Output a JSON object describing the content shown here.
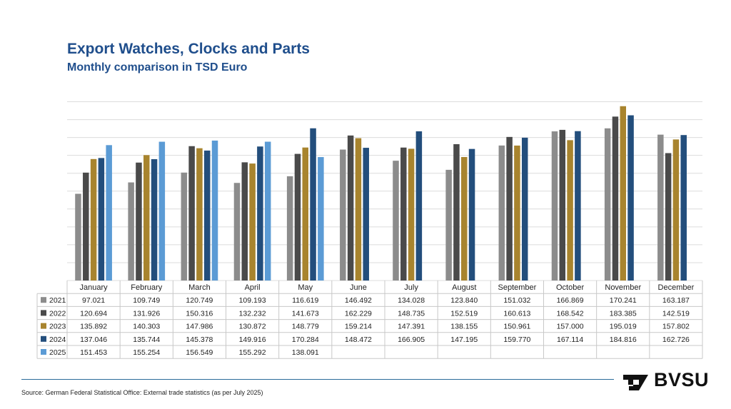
{
  "header": {
    "title": "Export Watches, Clocks and Parts",
    "subtitle": "Monthly comparison in TSD Euro"
  },
  "footer": {
    "source": "Source: German Federal Statistical Office: External trade statistics (as per July 2025)",
    "logo_text": "BVSU"
  },
  "chart_data": {
    "type": "bar",
    "title": "Export Watches, Clocks and Parts",
    "subtitle": "Monthly comparison in TSD Euro",
    "categories": [
      "January",
      "February",
      "March",
      "April",
      "May",
      "June",
      "July",
      "August",
      "September",
      "October",
      "November",
      "December"
    ],
    "ylim": [
      0,
      210
    ],
    "grid": true,
    "legend": "data-table",
    "series": [
      {
        "name": "2021",
        "color": "#8c8c8c",
        "values": [
          97.021,
          109.749,
          120.749,
          109.193,
          116.619,
          146.492,
          134.028,
          123.84,
          151.032,
          166.869,
          170.241,
          163.187
        ],
        "labels": [
          "97.021",
          "109.749",
          "120.749",
          "109.193",
          "116.619",
          "146.492",
          "134.028",
          "123.840",
          "151.032",
          "166.869",
          "170.241",
          "163.187"
        ]
      },
      {
        "name": "2022",
        "color": "#4a4a4a",
        "values": [
          120.694,
          131.926,
          150.316,
          132.232,
          141.673,
          162.229,
          148.735,
          152.519,
          160.613,
          168.542,
          183.385,
          142.519
        ],
        "labels": [
          "120.694",
          "131.926",
          "150.316",
          "132.232",
          "141.673",
          "162.229",
          "148.735",
          "152.519",
          "160.613",
          "168.542",
          "183.385",
          "142.519"
        ]
      },
      {
        "name": "2023",
        "color": "#a8842e",
        "values": [
          135.892,
          140.303,
          147.986,
          130.872,
          148.779,
          159.214,
          147.391,
          138.155,
          150.961,
          157.0,
          195.019,
          157.802
        ],
        "labels": [
          "135.892",
          "140.303",
          "147.986",
          "130.872",
          "148.779",
          "159.214",
          "147.391",
          "138.155",
          "150.961",
          "157.000",
          "195.019",
          "157.802"
        ]
      },
      {
        "name": "2024",
        "color": "#234e7c",
        "values": [
          137.046,
          135.744,
          145.378,
          149.916,
          170.284,
          148.472,
          166.905,
          147.195,
          159.77,
          167.114,
          184.816,
          162.726
        ],
        "labels": [
          "137.046",
          "135.744",
          "145.378",
          "149.916",
          "170.284",
          "148.472",
          "166.905",
          "147.195",
          "159.770",
          "167.114",
          "184.816",
          "162.726"
        ]
      },
      {
        "name": "2025",
        "color": "#5b9bd5",
        "values": [
          151.453,
          155.254,
          156.549,
          155.292,
          138.091,
          null,
          null,
          null,
          null,
          null,
          null,
          null
        ],
        "labels": [
          "151.453",
          "155.254",
          "156.549",
          "155.292",
          "138.091",
          "",
          "",
          "",
          "",
          "",
          "",
          ""
        ]
      }
    ]
  }
}
